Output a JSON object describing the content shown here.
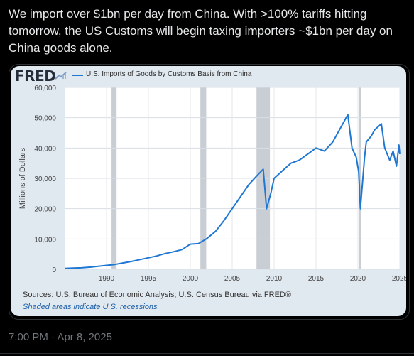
{
  "tweet": {
    "text_lines": [
      "We import over $1bn per day from China. With >100% tariffs hitting",
      "tomorrow, the US Customs will begin taxing importers ~$1bn per day on",
      "China goods alone."
    ],
    "timestamp": "7:00 PM · Apr 8, 2025"
  },
  "fred": {
    "logo": "FRED",
    "source": "Sources: U.S. Bureau of Economic Analysis; U.S. Census Bureau via FRED®",
    "note": "Shaded areas indicate U.S. recessions."
  },
  "colors": {
    "line": "#1f77d4",
    "recession": "#c8ced4",
    "plot_bg": "#ffffff",
    "card_bg": "#e1e9f0"
  },
  "chart_data": {
    "type": "line",
    "ylabel": "Millions of Dollars",
    "ylim": [
      0,
      60000
    ],
    "xlim": [
      1985,
      2025
    ],
    "y_ticks": [
      "0",
      "10,000",
      "20,000",
      "30,000",
      "40,000",
      "50,000",
      "60,000"
    ],
    "x_ticks": [
      "1990",
      "1995",
      "2000",
      "2005",
      "2010",
      "2015",
      "2020",
      "2025"
    ],
    "recessions": [
      [
        1990.6,
        1991.2
      ],
      [
        2001.2,
        2001.9
      ],
      [
        2007.9,
        2009.5
      ],
      [
        2020.1,
        2020.4
      ]
    ],
    "series": [
      {
        "name": "U.S. Imports of Goods by Customs Basis from China",
        "x": [
          1985,
          1986,
          1987,
          1988,
          1989,
          1990,
          1991,
          1992,
          1993,
          1994,
          1995,
          1996,
          1997,
          1998,
          1999,
          2000,
          2001,
          2002,
          2003,
          2004,
          2005,
          2006,
          2007,
          2008,
          2008.7,
          2009.1,
          2009.6,
          2010,
          2011,
          2012,
          2013,
          2014,
          2015,
          2016,
          2017,
          2018,
          2018.8,
          2019.3,
          2019.8,
          2020.1,
          2020.3,
          2020.8,
          2021,
          2021.6,
          2022,
          2022.8,
          2023.2,
          2023.8,
          2024.2,
          2024.6,
          2024.9,
          2025
        ],
        "values": [
          300,
          400,
          500,
          700,
          1000,
          1300,
          1600,
          2100,
          2600,
          3200,
          3800,
          4400,
          5200,
          5800,
          6500,
          8300,
          8500,
          10200,
          12500,
          16000,
          20000,
          24000,
          28000,
          31000,
          33000,
          20000,
          25000,
          30000,
          32500,
          35000,
          36000,
          38000,
          40000,
          39000,
          42000,
          47000,
          51000,
          40000,
          37000,
          32000,
          20000,
          37000,
          42000,
          44000,
          46000,
          48000,
          40000,
          36000,
          39000,
          34000,
          41000,
          38000
        ]
      }
    ]
  }
}
